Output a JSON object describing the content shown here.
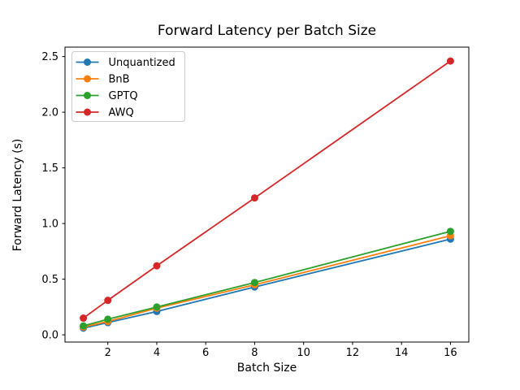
{
  "chart_data": {
    "type": "line",
    "title": "Forward Latency per Batch Size",
    "xlabel": "Batch Size",
    "ylabel": "Forward Latency (s)",
    "x": [
      1,
      2,
      4,
      8,
      16
    ],
    "series": [
      {
        "name": "Unquantized",
        "color": "#1f77b4",
        "values": [
          0.06,
          0.11,
          0.21,
          0.43,
          0.86
        ]
      },
      {
        "name": "BnB",
        "color": "#ff7f0e",
        "values": [
          0.07,
          0.12,
          0.24,
          0.45,
          0.89
        ]
      },
      {
        "name": "GPTQ",
        "color": "#2ca02c",
        "values": [
          0.08,
          0.14,
          0.25,
          0.47,
          0.93
        ]
      },
      {
        "name": "AWQ",
        "color": "#d62728",
        "values": [
          0.15,
          0.31,
          0.62,
          1.23,
          2.46
        ]
      }
    ],
    "xticks": [
      2,
      4,
      6,
      8,
      10,
      12,
      14,
      16
    ],
    "ytick_labels": [
      "0.0",
      "0.5",
      "1.0",
      "1.5",
      "2.0",
      "2.5"
    ],
    "ytick_values": [
      0.0,
      0.5,
      1.0,
      1.5,
      2.0,
      2.5
    ],
    "xlim": [
      0.25,
      16.75
    ],
    "ylim": [
      -0.065,
      2.585
    ],
    "grid": false,
    "legend_position": "upper left",
    "marker": "circle",
    "background_color": "#ffffff",
    "spine_color": "#000000"
  }
}
